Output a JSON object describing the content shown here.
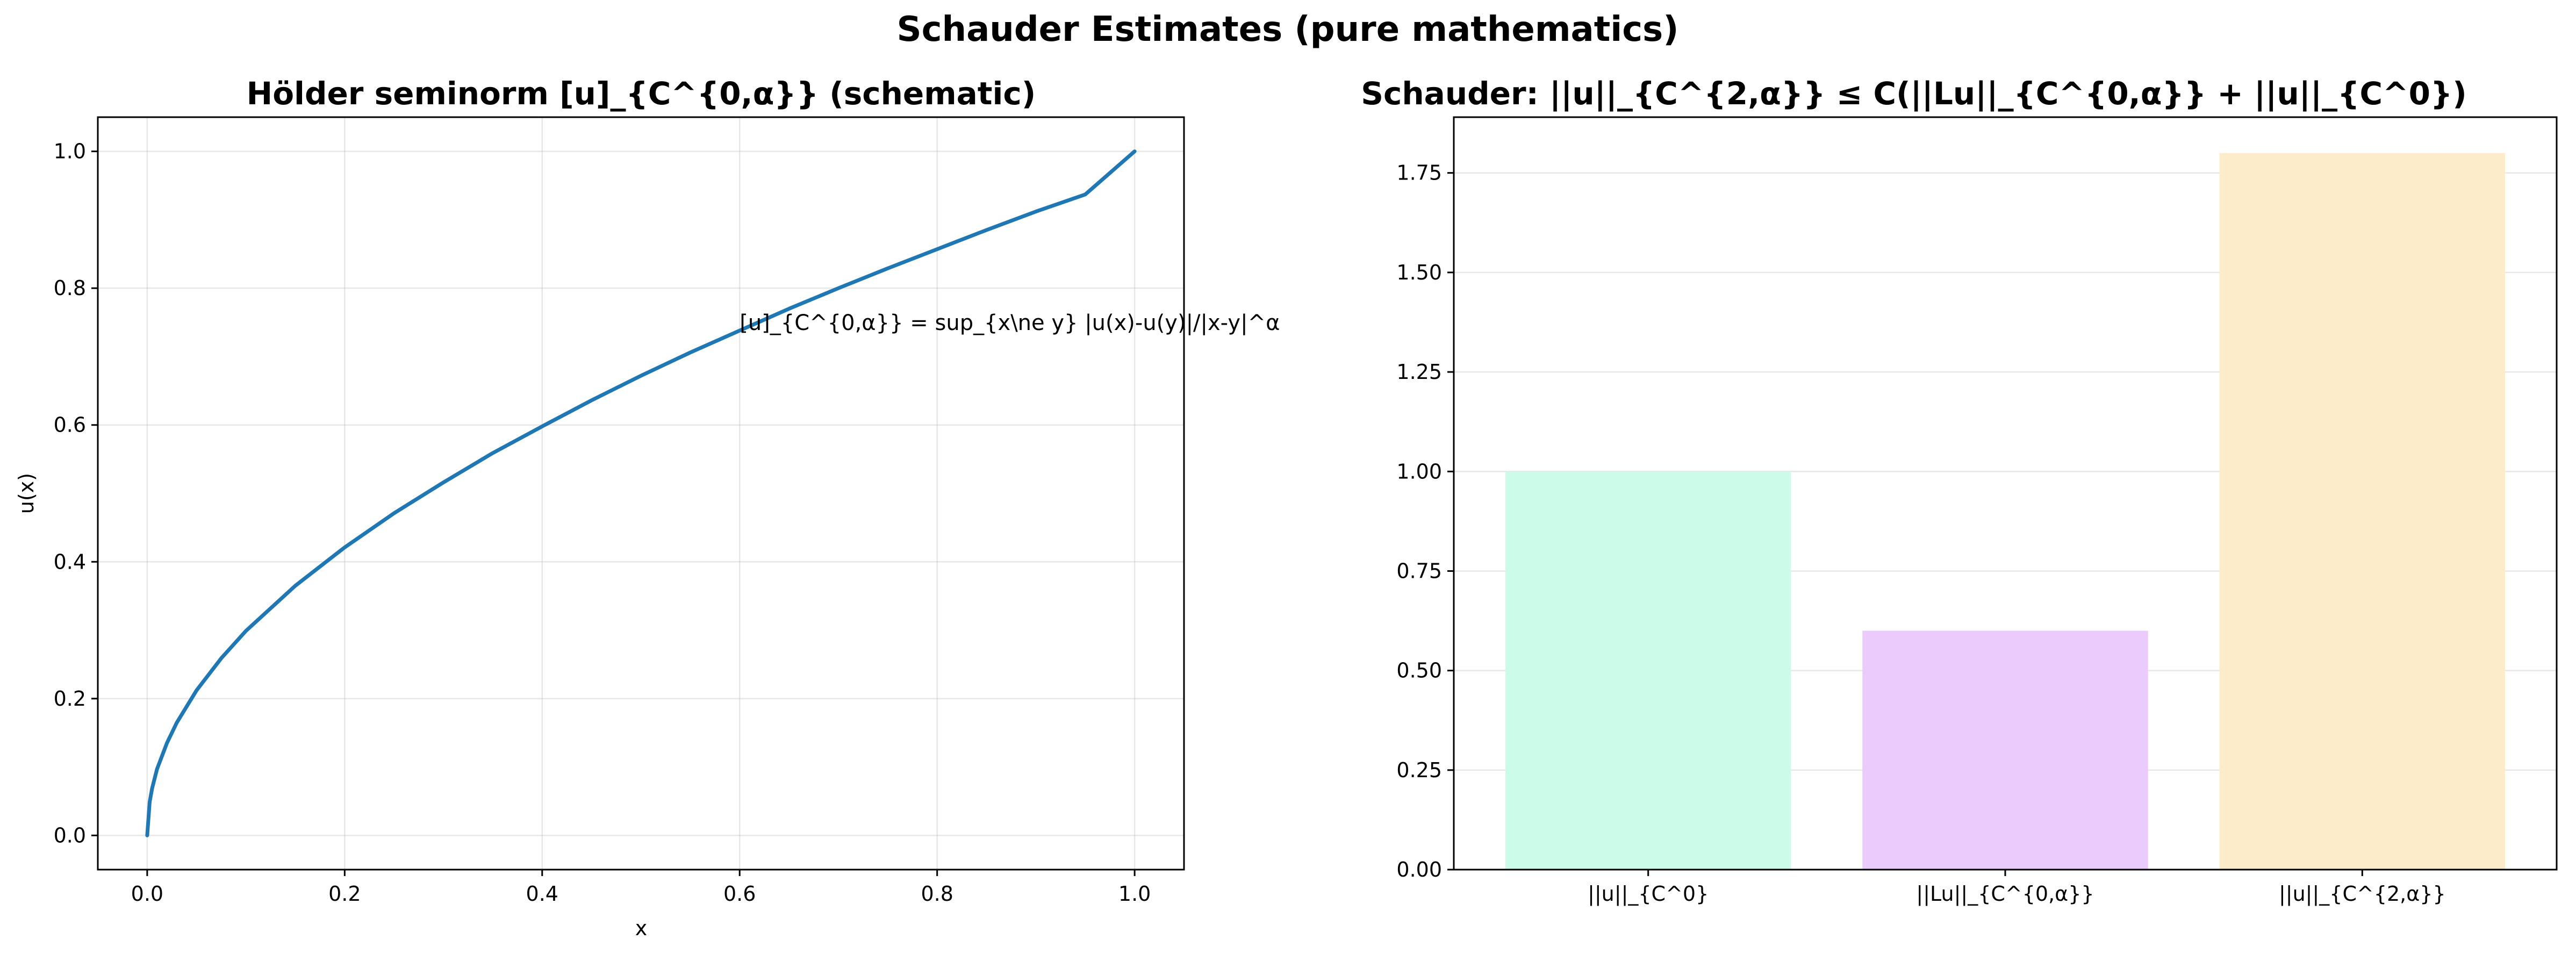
{
  "figure": {
    "suptitle": "Schauder Estimates (pure mathematics)"
  },
  "chart_data": [
    {
      "type": "line",
      "title": "Hölder seminorm [u]_{C^{0,α}} (schematic)",
      "xlabel": "x",
      "ylabel": "u(x)",
      "xlim": [
        -0.05,
        1.05
      ],
      "ylim": [
        -0.05,
        1.05
      ],
      "xticks": [
        0.0,
        0.2,
        0.4,
        0.6,
        0.8,
        1.0
      ],
      "xtick_labels": [
        "0.0",
        "0.2",
        "0.4",
        "0.6",
        "0.8",
        "1.0"
      ],
      "yticks": [
        0.0,
        0.2,
        0.4,
        0.6,
        0.8,
        1.0
      ],
      "ytick_labels": [
        "0.0",
        "0.2",
        "0.4",
        "0.6",
        "0.8",
        "1.0"
      ],
      "grid": true,
      "series": [
        {
          "color": "#1f77b4",
          "x": [
            0.0,
            0.0025,
            0.005,
            0.01,
            0.02,
            0.03,
            0.05,
            0.075,
            0.1,
            0.15,
            0.2,
            0.25,
            0.3,
            0.35,
            0.4,
            0.45,
            0.5,
            0.55,
            0.6,
            0.65,
            0.7,
            0.75,
            0.8,
            0.85,
            0.9,
            0.95,
            1.0
          ],
          "y": [
            0.0,
            0.049,
            0.069,
            0.097,
            0.135,
            0.165,
            0.212,
            0.259,
            0.299,
            0.365,
            0.421,
            0.471,
            0.516,
            0.559,
            0.598,
            0.636,
            0.672,
            0.706,
            0.738,
            0.77,
            0.8,
            0.829,
            0.857,
            0.885,
            0.912,
            0.937,
            1.0
          ]
        }
      ],
      "annotations": [
        {
          "text": "[u]_{C^{0,α}} = sup_{x\\ne y} |u(x)-u(y)|/|x-y|^α",
          "x": 0.6,
          "y": 0.75
        }
      ]
    },
    {
      "type": "bar",
      "title": "Schauder: ||u||_{C^{2,α}} ≤ C(||Lu||_{C^{0,α}} + ||u||_{C^0})",
      "categories": [
        "||u||_{C^0}",
        "||Lu||_{C^{0,α}}",
        "||u||_{C^{2,α}}"
      ],
      "values": [
        1.0,
        0.6,
        1.8
      ],
      "colors": [
        "#ccfbe9",
        "#ebcafc",
        "#fdecc9"
      ],
      "ylim": [
        0,
        1.89
      ],
      "yticks": [
        0.0,
        0.25,
        0.5,
        0.75,
        1.0,
        1.25,
        1.5,
        1.75
      ],
      "ytick_labels": [
        "0.00",
        "0.25",
        "0.50",
        "0.75",
        "1.00",
        "1.25",
        "1.50",
        "1.75"
      ],
      "grid": true
    }
  ]
}
